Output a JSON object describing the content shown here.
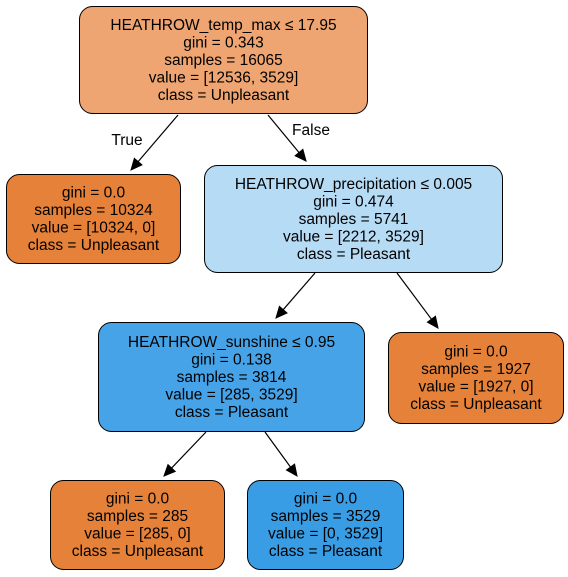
{
  "tree": {
    "nodes": [
      {
        "id": "root",
        "color": "#eea572",
        "lines": [
          "HEATHROW_temp_max ≤ 17.95",
          "gini = 0.343",
          "samples = 16065",
          "value = [12536, 3529]",
          "class = Unpleasant"
        ]
      },
      {
        "id": "left-leaf",
        "color": "#e58139",
        "lines": [
          "gini = 0.0",
          "samples = 10324",
          "value = [10324, 0]",
          "class = Unpleasant"
        ]
      },
      {
        "id": "precip-node",
        "color": "#b6dbf5",
        "lines": [
          "HEATHROW_precipitation ≤ 0.005",
          "gini = 0.474",
          "samples = 5741",
          "value = [2212, 3529]",
          "class = Pleasant"
        ]
      },
      {
        "id": "sunshine-node",
        "color": "#46a3e7",
        "lines": [
          "HEATHROW_sunshine ≤ 0.95",
          "gini = 0.138",
          "samples = 3814",
          "value = [285, 3529]",
          "class = Pleasant"
        ]
      },
      {
        "id": "precip-right-leaf",
        "color": "#e58139",
        "lines": [
          "gini = 0.0",
          "samples = 1927",
          "value = [1927, 0]",
          "class = Unpleasant"
        ]
      },
      {
        "id": "sunshine-left-leaf",
        "color": "#e58139",
        "lines": [
          "gini = 0.0",
          "samples = 285",
          "value = [285, 0]",
          "class = Unpleasant"
        ]
      },
      {
        "id": "sunshine-right-leaf",
        "color": "#399de5",
        "lines": [
          "gini = 0.0",
          "samples = 3529",
          "value = [0, 3529]",
          "class = Pleasant"
        ]
      }
    ],
    "edges": [
      {
        "from": "root",
        "to": "left-leaf",
        "label": "True"
      },
      {
        "from": "root",
        "to": "precip-node",
        "label": "False"
      },
      {
        "from": "precip-node",
        "to": "sunshine-node",
        "label": ""
      },
      {
        "from": "precip-node",
        "to": "precip-right-leaf",
        "label": ""
      },
      {
        "from": "sunshine-node",
        "to": "sunshine-left-leaf",
        "label": ""
      },
      {
        "from": "sunshine-node",
        "to": "sunshine-right-leaf",
        "label": ""
      }
    ]
  }
}
